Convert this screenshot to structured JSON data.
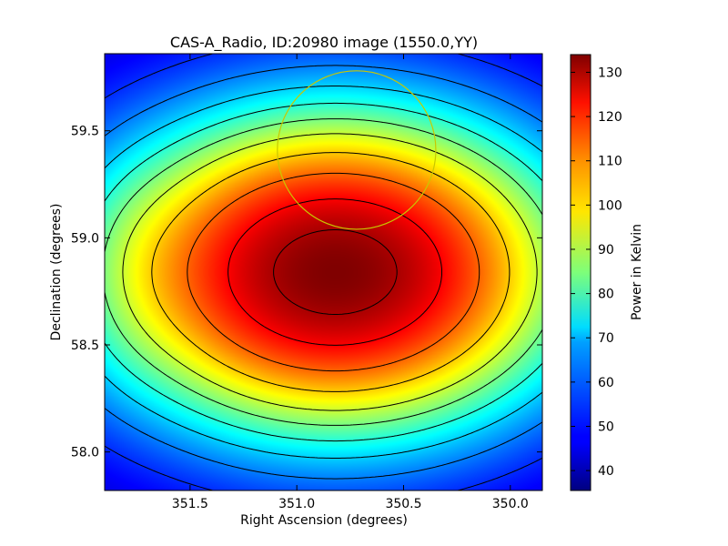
{
  "chart_data": {
    "type": "heatmap",
    "title": "CAS-A_Radio, ID:20980 image (1550.0,YY)",
    "xlabel": "Right Ascension (degrees)",
    "ylabel": "Declination (degrees)",
    "colorbar_label": "Power in Kelvin",
    "colormap": "jet",
    "xlim": [
      351.9,
      349.85
    ],
    "ylim": [
      57.82,
      59.86
    ],
    "x_ticks": [
      351.5,
      351.0,
      350.5,
      350.0
    ],
    "x_tick_labels": [
      "351.5",
      "351.0",
      "350.5",
      "350.0"
    ],
    "y_ticks": [
      58.0,
      58.5,
      59.0,
      59.5
    ],
    "y_tick_labels": [
      "58.0",
      "58.5",
      "59.0",
      "59.5"
    ],
    "colorbar_range": [
      35.5,
      134
    ],
    "colorbar_ticks": [
      40,
      50,
      60,
      70,
      80,
      90,
      100,
      110,
      120,
      130
    ],
    "colorbar_tick_labels": [
      "40",
      "50",
      "60",
      "70",
      "80",
      "90",
      "100",
      "110",
      "120",
      "130"
    ],
    "peak": {
      "ra": 350.82,
      "dec": 58.84,
      "value": 134
    },
    "background_value": 36,
    "contour_levels": [
      45,
      52,
      60,
      68,
      76,
      84,
      92,
      102,
      112,
      122,
      130
    ],
    "source_circle": {
      "ra": 350.72,
      "dec": 59.41,
      "radius_deg": 0.37,
      "color": "#c8c800"
    }
  }
}
